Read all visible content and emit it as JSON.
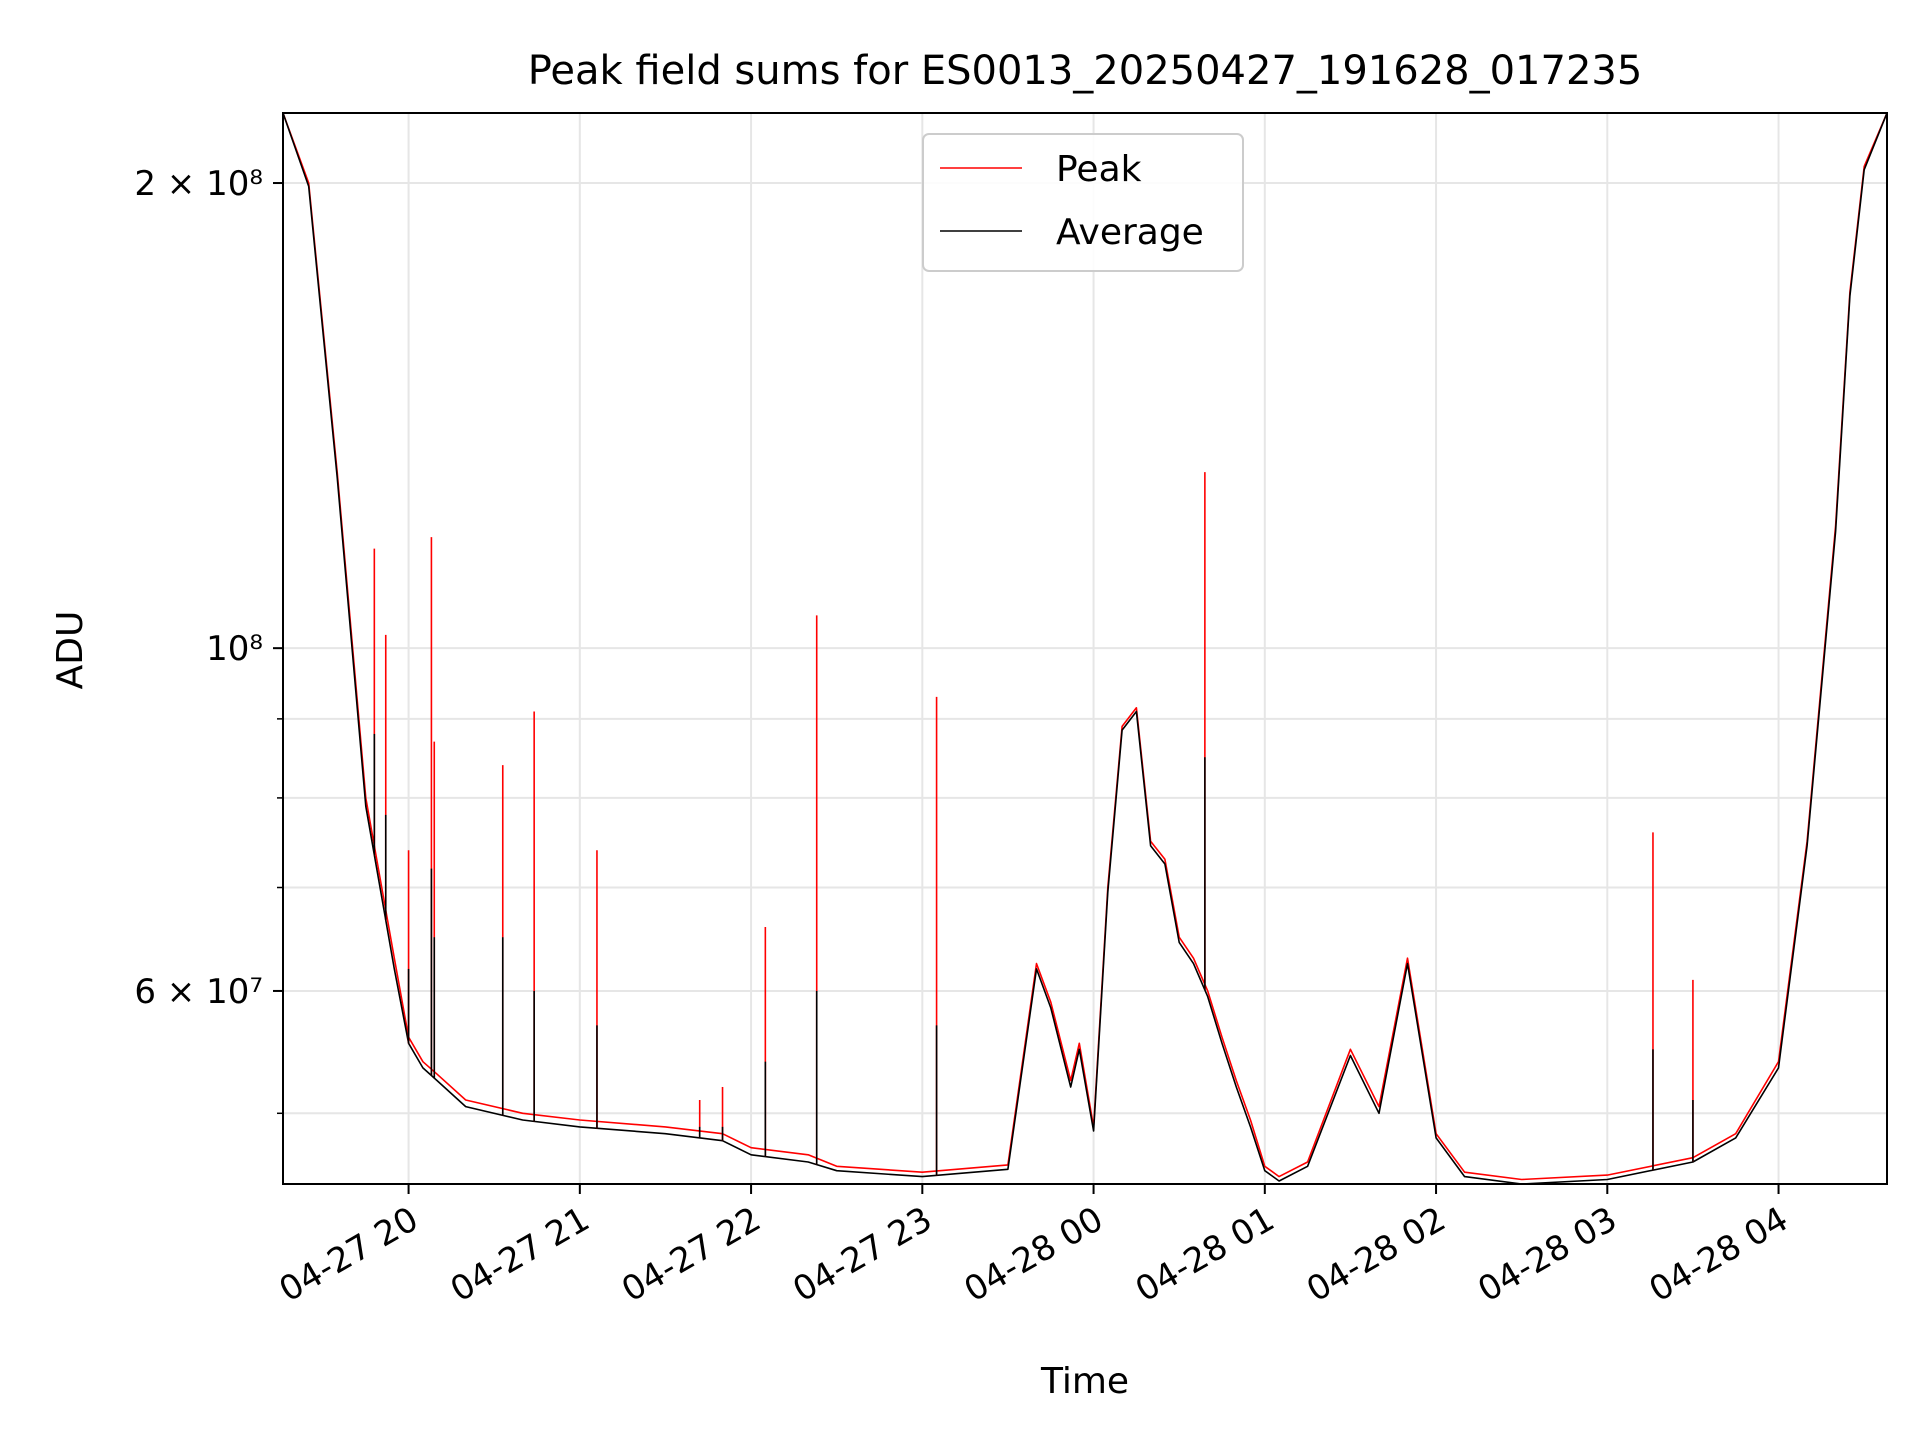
{
  "chart_data": {
    "type": "line",
    "title": "Peak field sums for ES0013_20250427_191628_017235",
    "xlabel": "Time",
    "ylabel": "ADU",
    "yscale": "log",
    "ylim": [
      45000000,
      222000000
    ],
    "xlim": [
      "04-27 19:16",
      "04-28 04:38"
    ],
    "grid": true,
    "legend_position": "upper center",
    "x_ticks": [
      "04-27 20",
      "04-27 21",
      "04-27 22",
      "04-27 23",
      "04-28 00",
      "04-28 01",
      "04-28 02",
      "04-28 03",
      "04-28 04"
    ],
    "y_ticks": [
      {
        "value": 200000000,
        "label": "2 × 10⁸"
      },
      {
        "value": 100000000,
        "label": "10⁸"
      },
      {
        "value": 60000000,
        "label": "6 × 10⁷"
      }
    ],
    "series": [
      {
        "name": "Peak",
        "color": "#ff0000",
        "x": [
          "04-27 19:16",
          "04-27 19:25",
          "04-27 19:35",
          "04-27 19:45",
          "04-27 19:55",
          "04-27 20:00",
          "04-27 20:05",
          "04-27 20:10",
          "04-27 20:20",
          "04-27 20:40",
          "04-27 21:00",
          "04-27 21:30",
          "04-27 21:50",
          "04-27 22:00",
          "04-27 22:20",
          "04-27 22:30",
          "04-27 23:00",
          "04-27 23:30",
          "04-27 23:40",
          "04-27 23:45",
          "04-27 23:52",
          "04-27 23:55",
          "04-28 00:00",
          "04-28 00:05",
          "04-28 00:10",
          "04-28 00:15",
          "04-28 00:20",
          "04-28 00:25",
          "04-28 00:30",
          "04-28 00:35",
          "04-28 00:40",
          "04-28 00:45",
          "04-28 00:50",
          "04-28 00:55",
          "04-28 01:00",
          "04-28 01:05",
          "04-28 01:15",
          "04-28 01:30",
          "04-28 01:40",
          "04-28 01:50",
          "04-28 02:00",
          "04-28 02:10",
          "04-28 02:30",
          "04-28 03:00",
          "04-28 03:30",
          "04-28 03:45",
          "04-28 04:00",
          "04-28 04:10",
          "04-28 04:20",
          "04-28 04:25",
          "04-28 04:30",
          "04-28 04:38"
        ],
        "y": [
          222000000,
          200000000,
          130000000,
          80000000,
          63000000,
          56000000,
          54000000,
          53000000,
          51000000,
          50000000,
          49500000,
          49000000,
          48500000,
          47500000,
          47000000,
          46200000,
          45800000,
          46300000,
          62500000,
          59000000,
          52500000,
          55500000,
          49000000,
          70000000,
          89000000,
          91500000,
          75000000,
          73000000,
          65000000,
          63000000,
          60000000,
          56000000,
          52500000,
          49500000,
          46200000,
          45500000,
          46500000,
          55000000,
          50500000,
          63000000,
          48500000,
          45800000,
          45300000,
          45600000,
          46800000,
          48500000,
          54000000,
          75000000,
          120000000,
          170000000,
          205000000,
          222000000
        ]
      },
      {
        "name": "Average",
        "color": "#000000",
        "x": [
          "04-27 19:16",
          "04-27 19:25",
          "04-27 19:35",
          "04-27 19:45",
          "04-27 19:55",
          "04-27 20:00",
          "04-27 20:05",
          "04-27 20:10",
          "04-27 20:20",
          "04-27 20:40",
          "04-27 21:00",
          "04-27 21:30",
          "04-27 21:50",
          "04-27 22:00",
          "04-27 22:20",
          "04-27 22:30",
          "04-27 23:00",
          "04-27 23:30",
          "04-27 23:40",
          "04-27 23:45",
          "04-27 23:52",
          "04-27 23:55",
          "04-28 00:00",
          "04-28 00:05",
          "04-28 00:10",
          "04-28 00:15",
          "04-28 00:20",
          "04-28 00:25",
          "04-28 00:30",
          "04-28 00:35",
          "04-28 00:40",
          "04-28 00:45",
          "04-28 00:50",
          "04-28 00:55",
          "04-28 01:00",
          "04-28 01:05",
          "04-28 01:15",
          "04-28 01:30",
          "04-28 01:40",
          "04-28 01:50",
          "04-28 02:00",
          "04-28 02:10",
          "04-28 02:30",
          "04-28 03:00",
          "04-28 03:30",
          "04-28 03:45",
          "04-28 04:00",
          "04-28 04:10",
          "04-28 04:20",
          "04-28 04:25",
          "04-28 04:30",
          "04-28 04:38"
        ],
        "y": [
          222000000,
          199000000,
          129000000,
          79000000,
          62000000,
          55500000,
          53500000,
          52500000,
          50500000,
          49500000,
          49000000,
          48500000,
          48000000,
          47000000,
          46500000,
          45900000,
          45500000,
          46000000,
          62000000,
          58500000,
          52000000,
          55000000,
          48700000,
          69500000,
          88500000,
          91000000,
          74500000,
          72500000,
          64500000,
          62500000,
          59500000,
          55500000,
          52000000,
          49000000,
          45900000,
          45200000,
          46200000,
          54500000,
          50000000,
          62500000,
          48200000,
          45500000,
          45000000,
          45300000,
          46500000,
          48200000,
          53500000,
          74500000,
          119000000,
          169000000,
          204000000,
          222000000
        ]
      }
    ],
    "spikes": [
      {
        "x": "04-27 19:48",
        "peak": 116000000,
        "average": 88000000
      },
      {
        "x": "04-27 19:52",
        "peak": 102000000,
        "average": 78000000
      },
      {
        "x": "04-27 20:00",
        "peak": 74000000,
        "average": 62000000
      },
      {
        "x": "04-27 20:08",
        "peak": 118000000,
        "average": 72000000
      },
      {
        "x": "04-27 20:09",
        "peak": 87000000,
        "average": 65000000
      },
      {
        "x": "04-27 20:33",
        "peak": 84000000,
        "average": 65000000
      },
      {
        "x": "04-27 20:44",
        "peak": 91000000,
        "average": 60000000
      },
      {
        "x": "04-27 21:06",
        "peak": 74000000,
        "average": 57000000
      },
      {
        "x": "04-27 21:42",
        "peak": 51000000,
        "average": 49000000
      },
      {
        "x": "04-27 21:50",
        "peak": 52000000,
        "average": 49000000
      },
      {
        "x": "04-27 22:05",
        "peak": 66000000,
        "average": 54000000
      },
      {
        "x": "04-27 22:23",
        "peak": 105000000,
        "average": 60000000
      },
      {
        "x": "04-27 23:05",
        "peak": 93000000,
        "average": 57000000
      },
      {
        "x": "04-28 00:39",
        "peak": 130000000,
        "average": 85000000
      },
      {
        "x": "04-28 03:16",
        "peak": 76000000,
        "average": 55000000
      },
      {
        "x": "04-28 03:30",
        "peak": 61000000,
        "average": 51000000
      }
    ]
  }
}
